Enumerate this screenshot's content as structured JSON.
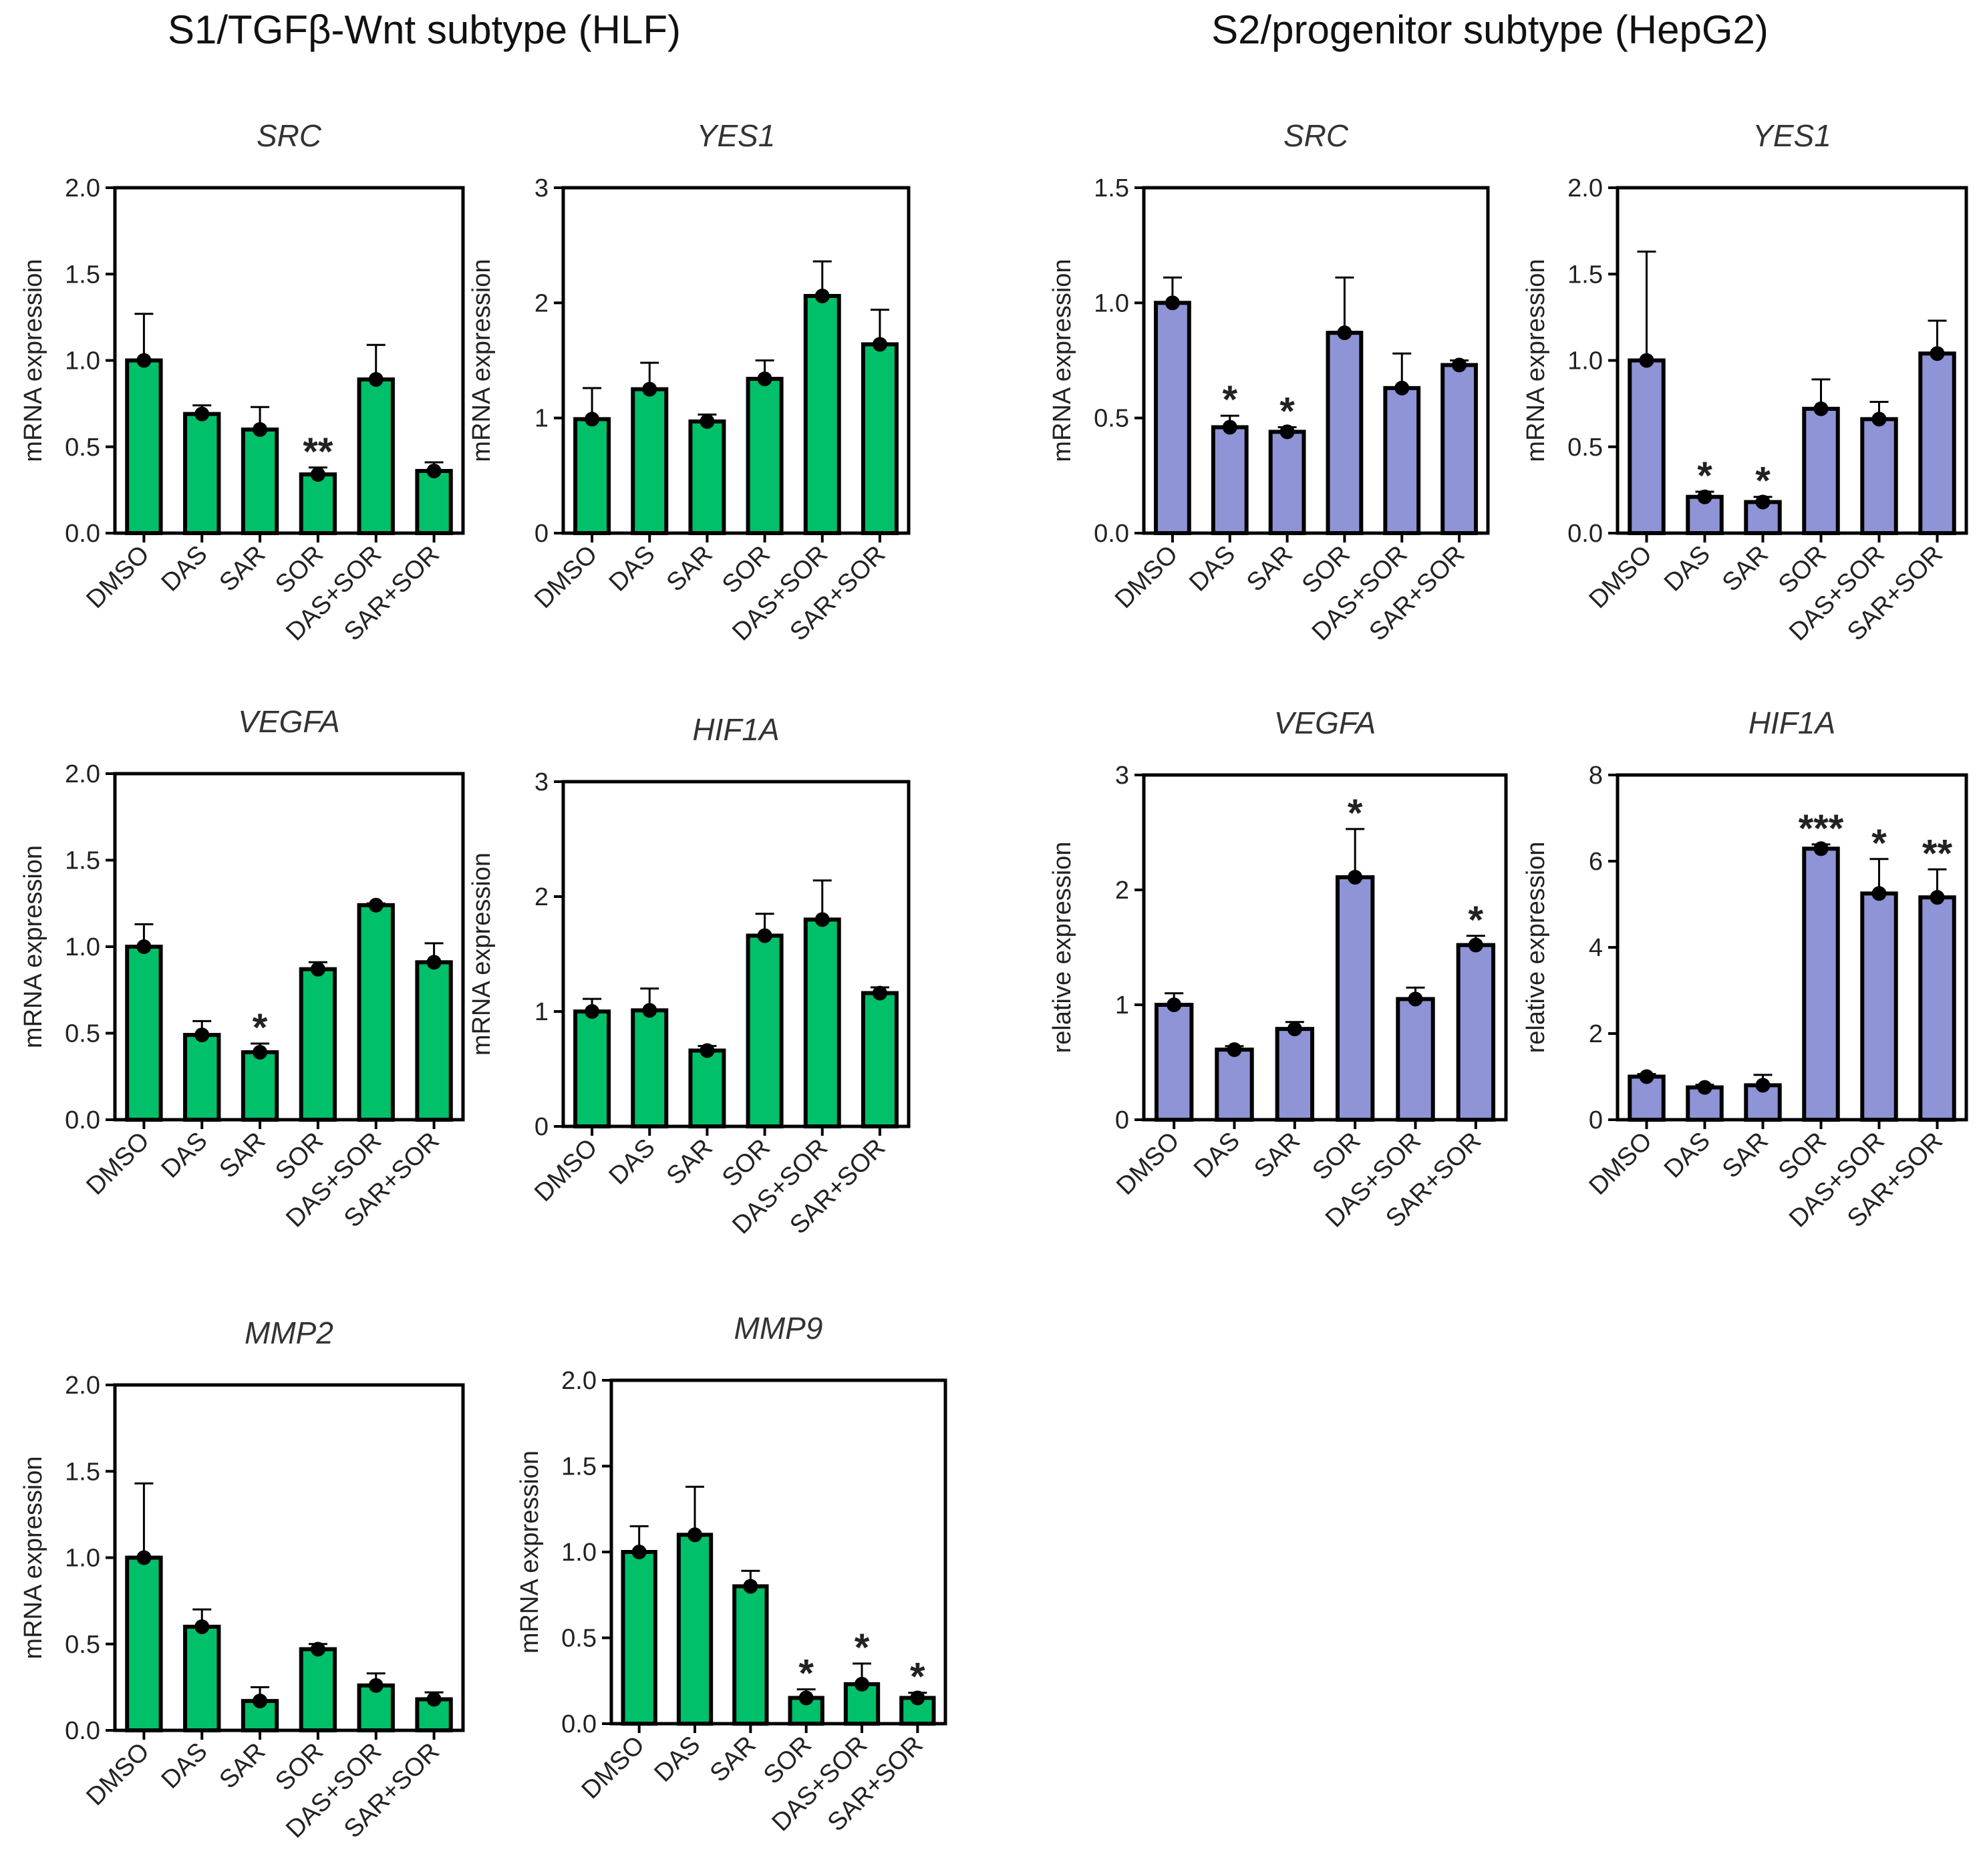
{
  "figure": {
    "left_title": "S1/TGFβ-Wnt subtype (HLF)",
    "right_title": "S2/progenitor subtype (HepG2)"
  },
  "colors": {
    "green_bar": "#00c06a",
    "purple_bar": "#8f94d6",
    "outline": "#000000"
  },
  "chart_data": [
    {
      "id": "hlf-src",
      "type": "bar",
      "title": "SRC",
      "ylabel": "mRNA expression",
      "ylim": [
        0,
        2.0
      ],
      "yticks": [
        "0.0",
        "0.5",
        "1.0",
        "1.5",
        "2.0"
      ],
      "color": "green",
      "categories": [
        "DMSO",
        "DAS",
        "SAR",
        "SOR",
        "DAS+SOR",
        "SAR+SOR"
      ],
      "values": [
        1.0,
        0.69,
        0.6,
        0.34,
        0.89,
        0.36
      ],
      "errors": [
        0.27,
        0.05,
        0.13,
        0.04,
        0.2,
        0.05
      ],
      "significance": [
        "",
        "",
        "",
        "**",
        "",
        ""
      ]
    },
    {
      "id": "hlf-yes1",
      "type": "bar",
      "title": "YES1",
      "ylabel": "mRNA expression",
      "ylim": [
        0,
        3
      ],
      "yticks": [
        "0",
        "1",
        "2",
        "3"
      ],
      "color": "green",
      "categories": [
        "DMSO",
        "DAS",
        "SAR",
        "SOR",
        "DAS+SOR",
        "SAR+SOR"
      ],
      "values": [
        0.99,
        1.25,
        0.97,
        1.34,
        2.06,
        1.64
      ],
      "errors": [
        0.27,
        0.23,
        0.06,
        0.16,
        0.3,
        0.3
      ],
      "significance": [
        "",
        "",
        "",
        "",
        "",
        ""
      ]
    },
    {
      "id": "hepg2-src",
      "type": "bar",
      "title": "SRC",
      "ylabel": "mRNA expression",
      "ylim": [
        0,
        1.5
      ],
      "yticks": [
        "0.0",
        "0.5",
        "1.0",
        "1.5"
      ],
      "color": "purple",
      "categories": [
        "DMSO",
        "DAS",
        "SAR",
        "SOR",
        "DAS+SOR",
        "SAR+SOR"
      ],
      "values": [
        1.0,
        0.46,
        0.44,
        0.87,
        0.63,
        0.73
      ],
      "errors": [
        0.11,
        0.05,
        0.02,
        0.24,
        0.15,
        0.02
      ],
      "significance": [
        "",
        "*",
        "*",
        "",
        "",
        ""
      ]
    },
    {
      "id": "hepg2-yes1",
      "type": "bar",
      "title": "YES1",
      "ylabel": "mRNA expression",
      "ylim": [
        0,
        2.0
      ],
      "yticks": [
        "0.0",
        "0.5",
        "1.0",
        "1.5",
        "2.0"
      ],
      "color": "purple",
      "categories": [
        "DMSO",
        "DAS",
        "SAR",
        "SOR",
        "DAS+SOR",
        "SAR+SOR"
      ],
      "values": [
        1.0,
        0.21,
        0.18,
        0.72,
        0.66,
        1.04
      ],
      "errors": [
        0.63,
        0.03,
        0.03,
        0.17,
        0.1,
        0.19
      ],
      "significance": [
        "",
        "*",
        "*",
        "",
        "",
        ""
      ]
    },
    {
      "id": "hlf-vegfa",
      "type": "bar",
      "title": "VEGFA",
      "ylabel": "mRNA expression",
      "ylim": [
        0,
        2.0
      ],
      "yticks": [
        "0.0",
        "0.5",
        "1.0",
        "1.5",
        "2.0"
      ],
      "color": "green",
      "categories": [
        "DMSO",
        "DAS",
        "SAR",
        "SOR",
        "DAS+SOR",
        "SAR+SOR"
      ],
      "values": [
        1.0,
        0.49,
        0.39,
        0.87,
        1.24,
        0.91
      ],
      "errors": [
        0.13,
        0.08,
        0.05,
        0.04,
        0.01,
        0.11
      ],
      "significance": [
        "",
        "",
        "*",
        "",
        "",
        ""
      ]
    },
    {
      "id": "hlf-hif1a",
      "type": "bar",
      "title": "HIF1A",
      "ylabel": "mRNA expression",
      "ylim": [
        0,
        3
      ],
      "yticks": [
        "0",
        "1",
        "2",
        "3"
      ],
      "color": "green",
      "categories": [
        "DMSO",
        "DAS",
        "SAR",
        "SOR",
        "DAS+SOR",
        "SAR+SOR"
      ],
      "values": [
        1.0,
        1.01,
        0.66,
        1.66,
        1.8,
        1.16
      ],
      "errors": [
        0.11,
        0.19,
        0.04,
        0.19,
        0.34,
        0.05
      ],
      "significance": [
        "",
        "",
        "",
        "",
        "",
        ""
      ]
    },
    {
      "id": "hepg2-vegfa",
      "type": "bar",
      "title": "VEGFA",
      "ylabel": "relative expression",
      "ylim": [
        0,
        3
      ],
      "yticks": [
        "0",
        "1",
        "2",
        "3"
      ],
      "color": "purple",
      "categories": [
        "DMSO",
        "DAS",
        "SAR",
        "SOR",
        "DAS+SOR",
        "SAR+SOR"
      ],
      "values": [
        1.0,
        0.61,
        0.79,
        2.11,
        1.05,
        1.52
      ],
      "errors": [
        0.1,
        0.03,
        0.06,
        0.42,
        0.1,
        0.08
      ],
      "significance": [
        "",
        "",
        "",
        "*",
        "",
        "*"
      ]
    },
    {
      "id": "hepg2-hif1a",
      "type": "bar",
      "title": "HIF1A",
      "ylabel": "relative expression",
      "ylim": [
        0,
        8
      ],
      "yticks": [
        "0",
        "2",
        "4",
        "6",
        "8"
      ],
      "color": "purple",
      "categories": [
        "DMSO",
        "DAS",
        "SAR",
        "SOR",
        "DAS+SOR",
        "SAR+SOR"
      ],
      "values": [
        1.0,
        0.75,
        0.8,
        6.29,
        5.25,
        5.16
      ],
      "errors": [
        0.06,
        0.06,
        0.24,
        0.1,
        0.8,
        0.65
      ],
      "significance": [
        "",
        "",
        "",
        "***",
        "*",
        "**"
      ]
    },
    {
      "id": "hlf-mmp2",
      "type": "bar",
      "title": "MMP2",
      "ylabel": "mRNA expression",
      "ylim": [
        0,
        2.0
      ],
      "yticks": [
        "0.0",
        "0.5",
        "1.0",
        "1.5",
        "2.0"
      ],
      "color": "green",
      "categories": [
        "DMSO",
        "DAS",
        "SAR",
        "SOR",
        "DAS+SOR",
        "SAR+SOR"
      ],
      "values": [
        1.0,
        0.6,
        0.17,
        0.47,
        0.26,
        0.18
      ],
      "errors": [
        0.43,
        0.1,
        0.08,
        0.03,
        0.07,
        0.04
      ],
      "significance": [
        "",
        "",
        "",
        "",
        "",
        ""
      ]
    },
    {
      "id": "hlf-mmp9",
      "type": "bar",
      "title": "MMP9",
      "ylabel": "mRNA expression",
      "ylim": [
        0,
        2.0
      ],
      "yticks": [
        "0.0",
        "0.5",
        "1.0",
        "1.5",
        "2.0"
      ],
      "color": "green",
      "categories": [
        "DMSO",
        "DAS",
        "SAR",
        "SOR",
        "DAS+SOR",
        "SAR+SOR"
      ],
      "values": [
        1.0,
        1.1,
        0.8,
        0.15,
        0.23,
        0.15
      ],
      "errors": [
        0.15,
        0.28,
        0.09,
        0.05,
        0.12,
        0.03
      ],
      "significance": [
        "",
        "",
        "",
        "*",
        "*",
        "*"
      ]
    }
  ]
}
